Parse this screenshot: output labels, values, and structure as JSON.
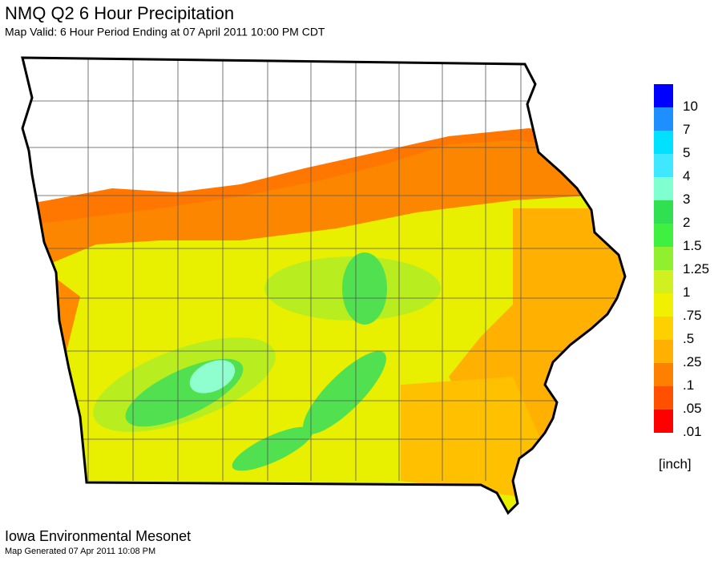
{
  "header": {
    "title": "NMQ Q2 6 Hour Precipitation",
    "subtitle": "Map Valid:  6 Hour Period Ending at 07 April 2011 10:00 PM CDT"
  },
  "legend": {
    "items": [
      {
        "label": "10",
        "color": "#0000ff"
      },
      {
        "label": "7",
        "color": "#1e8fff"
      },
      {
        "label": "5",
        "color": "#00e0ff"
      },
      {
        "label": "4",
        "color": "#40e8ff"
      },
      {
        "label": "3",
        "color": "#80ffd0"
      },
      {
        "label": "2",
        "color": "#30e050"
      },
      {
        "label": "1.5",
        "color": "#40f040"
      },
      {
        "label": "1.25",
        "color": "#90f030"
      },
      {
        "label": "1",
        "color": "#d0f020"
      },
      {
        "label": ".75",
        "color": "#f0f000"
      },
      {
        "label": ".5",
        "color": "#ffd000"
      },
      {
        "label": ".25",
        "color": "#ffb000"
      },
      {
        "label": ".1",
        "color": "#ff8000"
      },
      {
        "label": ".05",
        "color": "#ff5000"
      },
      {
        "label": ".01",
        "color": "#ff0000"
      }
    ],
    "unit": "[inch]"
  },
  "footer": {
    "source": "Iowa Environmental Mesonet",
    "generated": "Map Generated 07 Apr 2011 10:08 PM"
  }
}
